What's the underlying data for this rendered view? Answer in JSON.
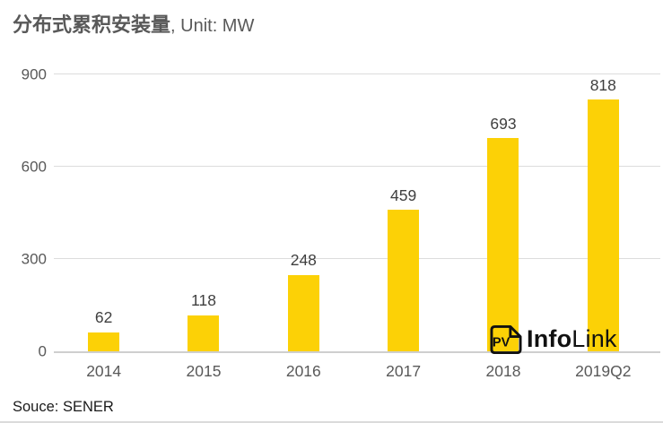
{
  "title": {
    "main": "分布式累积安装量",
    "unit": ", Unit: MW"
  },
  "source": "Souce: SENER",
  "logo": {
    "badge": "PV",
    "name_bold": "Info",
    "name_light": "Link"
  },
  "colors": {
    "bar": "#FCD106",
    "gridline": "#DCDCDC",
    "axis_line": "#CFCFCF",
    "axis_text": "#595959",
    "data_label_text": "#3F3F3F",
    "title_text": "#595959",
    "logo_black": "#111111"
  },
  "chart_data": {
    "type": "bar",
    "title": "分布式累积安装量, Unit: MW",
    "categories": [
      "2014",
      "2015",
      "2016",
      "2017",
      "2018",
      "2019Q2"
    ],
    "values": [
      62,
      118,
      248,
      459,
      693,
      818
    ],
    "ylabel": "MW",
    "xlabel": "",
    "ylim": [
      0,
      900
    ],
    "yticks": [
      0,
      300,
      600,
      900
    ],
    "grid": "horizontal",
    "legend": "none",
    "data_labels": true,
    "bar_color": "#FCD106",
    "source": "Souce: SENER"
  }
}
